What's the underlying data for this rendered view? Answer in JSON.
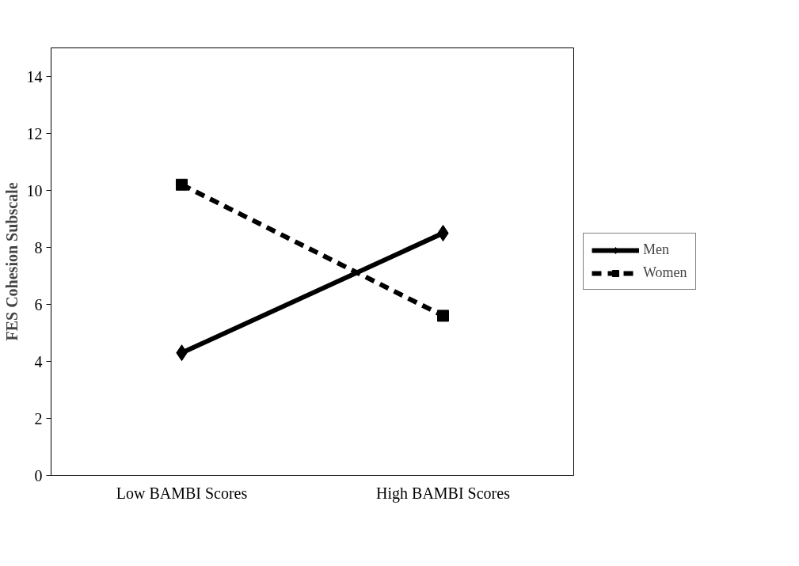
{
  "chart_data": {
    "type": "line",
    "ylabel": "FES Cohesion Subscale",
    "categories": [
      "Low BAMBI Scores",
      "High BAMBI Scores"
    ],
    "series": [
      {
        "name": "Men",
        "color": "#000000",
        "values": [
          4.3,
          8.5
        ],
        "marker": "diamond",
        "line_style": "solid"
      },
      {
        "name": "Women",
        "color": "#000000",
        "values": [
          10.2,
          5.6
        ],
        "marker": "square",
        "line_style": "dashed"
      }
    ],
    "ylim": [
      0,
      15
    ],
    "yticks": [
      0,
      2,
      4,
      6,
      8,
      10,
      12,
      14
    ],
    "grid": false,
    "legend": "right"
  }
}
